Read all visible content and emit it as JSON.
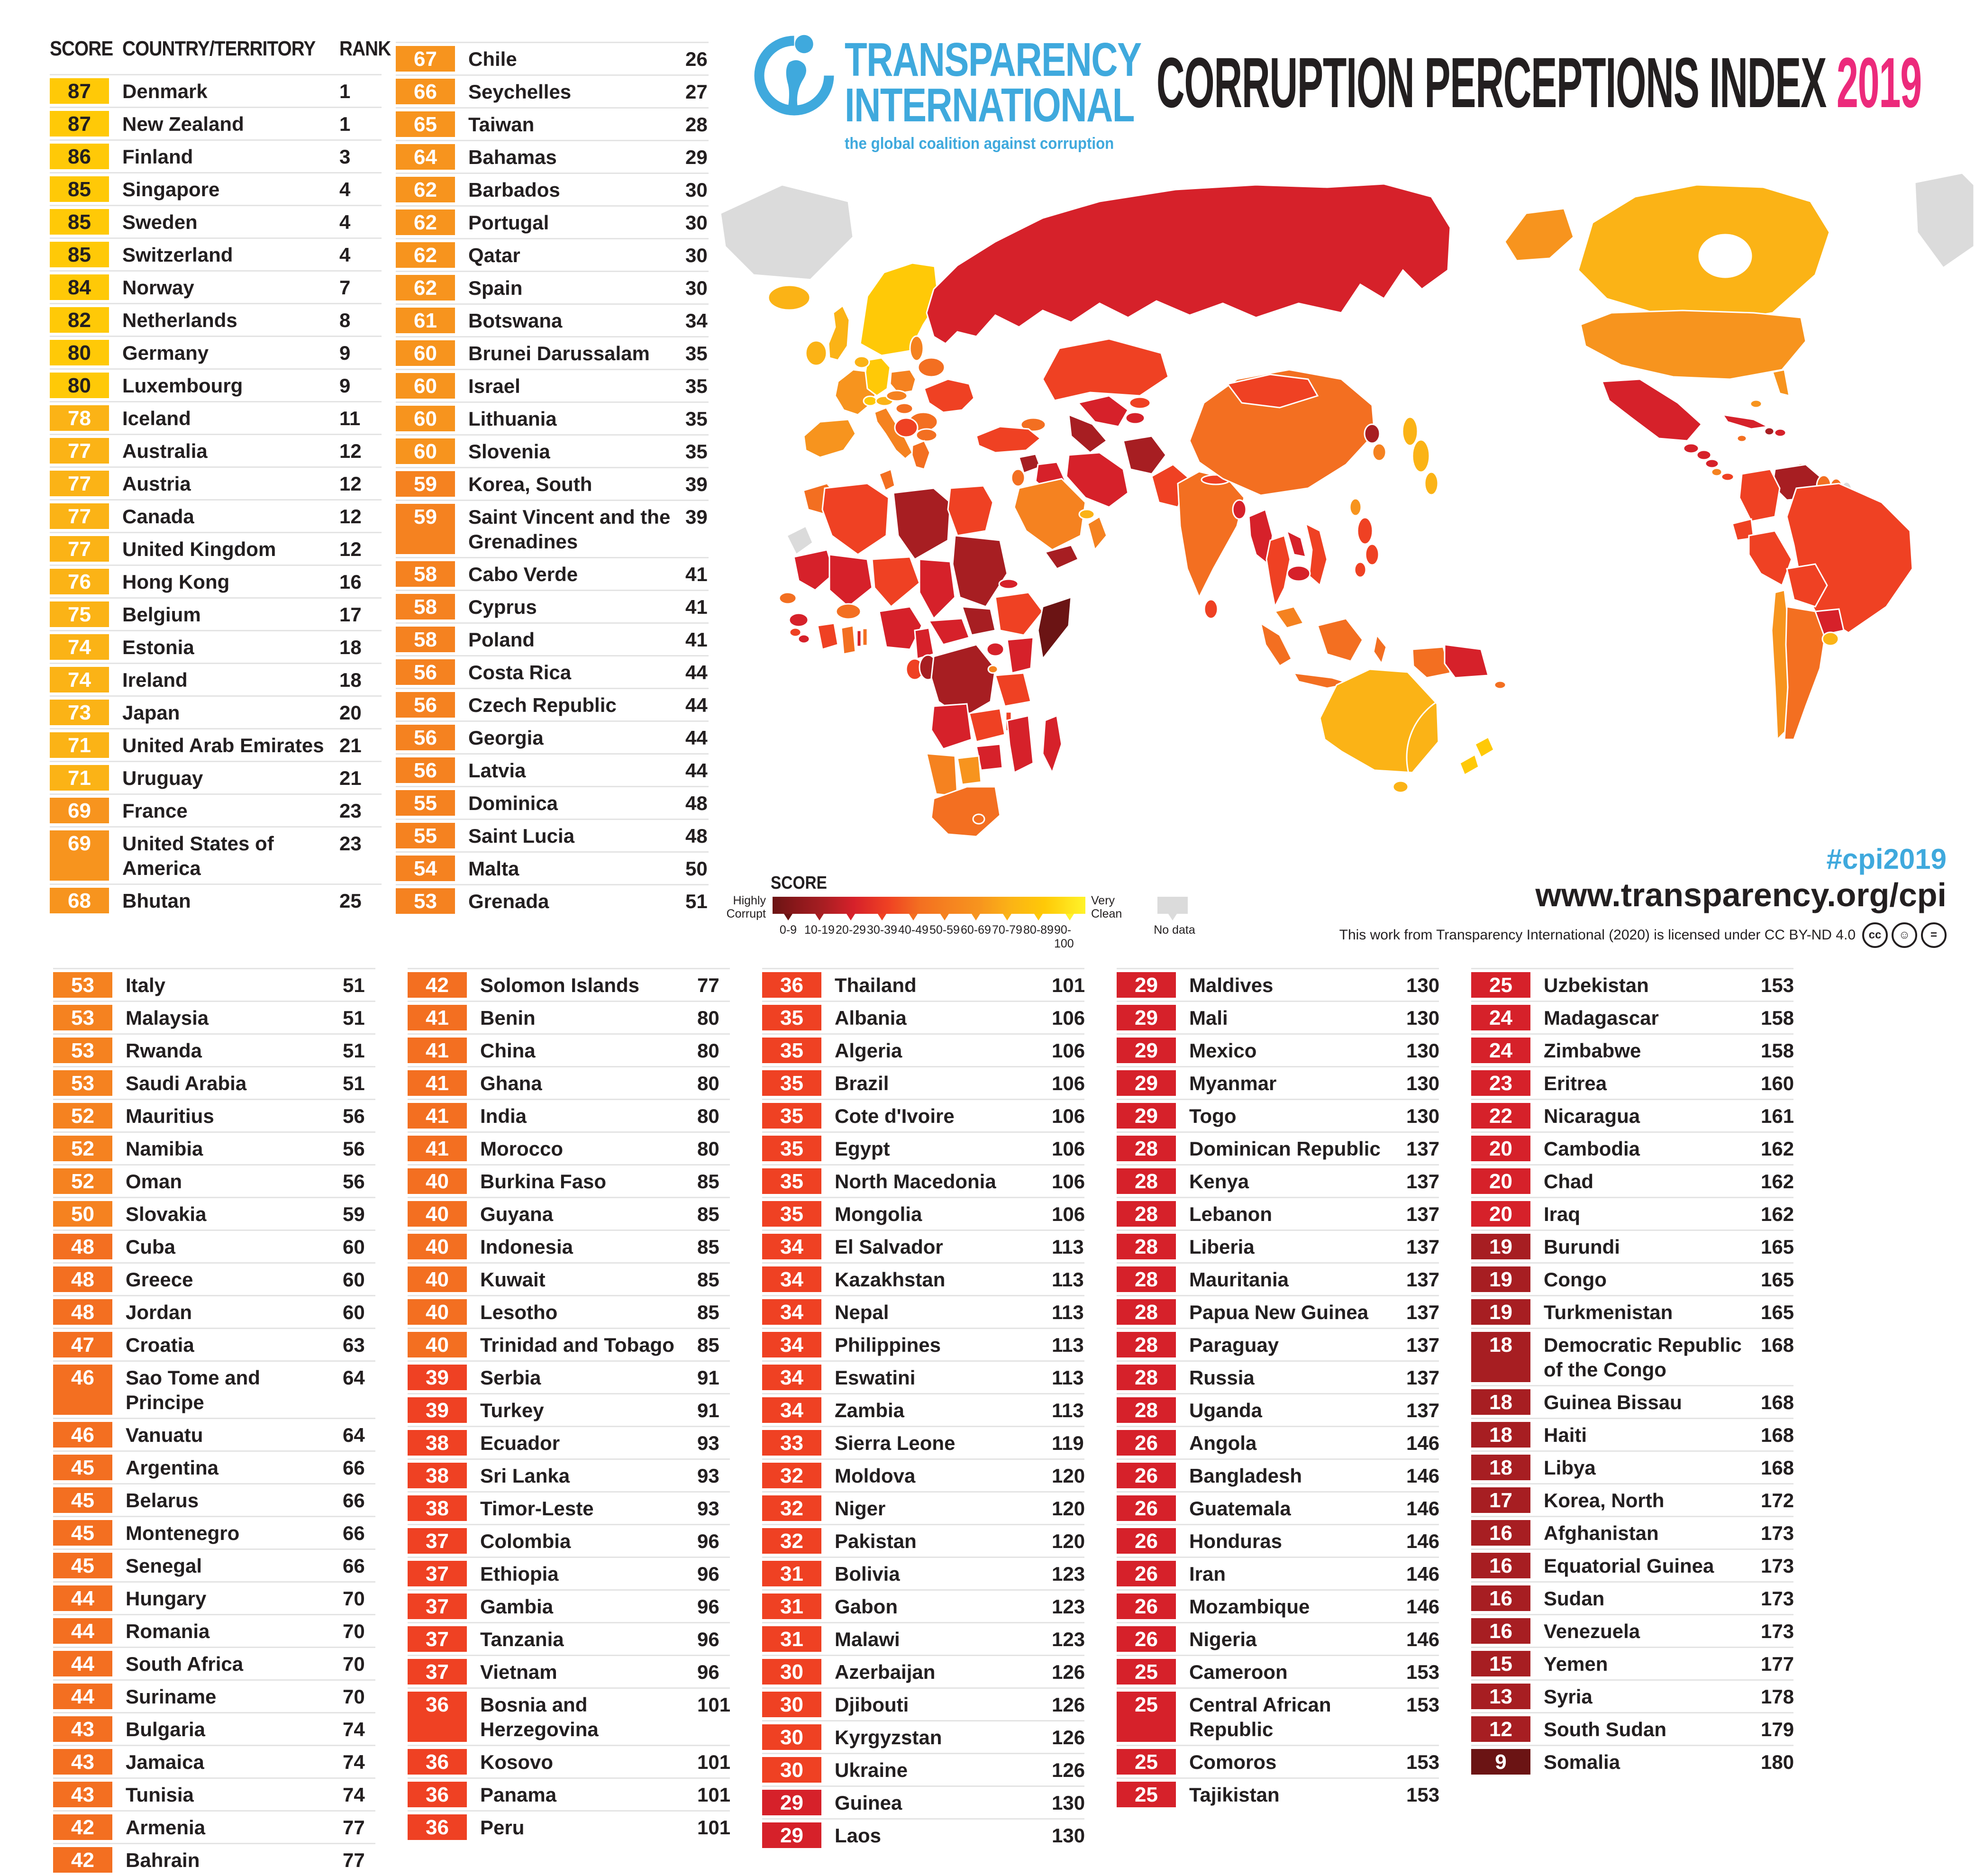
{
  "header": {
    "logo_line1": "TRANSPARENCY",
    "logo_line2": "INTERNATIONAL",
    "tagline": "the global coalition against corruption",
    "title_main": "CORRUPTION PERCEPTIONS INDEX ",
    "title_year": "2019"
  },
  "colors": {
    "blue": "#3FA9DD",
    "pink": "#EC2A7B",
    "text": "#231F20",
    "nz_highlight": "#A5CFD6"
  },
  "score_colors": {
    "90": "#FFF32A",
    "80": "#FFC907",
    "70": "#FBB316",
    "60": "#F7941E",
    "50": "#F58220",
    "40": "#F36F21",
    "30": "#EF4123",
    "20": "#D6212A",
    "10": "#A71E22",
    "0": "#6B1414",
    "nodata": "#DBDBDB"
  },
  "legend": {
    "label": "SCORE",
    "left_label_line1": "Highly",
    "left_label_line2": "Corrupt",
    "right_label_line1": "Very",
    "right_label_line2": "Clean",
    "no_data_label": "No data",
    "ticks": [
      "0-9",
      "10-19",
      "20-29",
      "30-39",
      "40-49",
      "50-59",
      "60-69",
      "70-79",
      "80-89",
      "90-100"
    ],
    "tick_colors": [
      "#6B1414",
      "#A71E22",
      "#D6212A",
      "#EF4123",
      "#F36F21",
      "#F58220",
      "#F7941E",
      "#FBB316",
      "#FFC907",
      "#FFF32A"
    ]
  },
  "footer": {
    "hashtag": "#cpi2019",
    "url": "www.transparency.org/cpi",
    "license": "This work from Transparency International (2020) is licensed under CC BY-ND 4.0"
  },
  "map": {
    "type": "choropleth-world-map",
    "projection": "pacific-centered",
    "highlight": "New Zealand circled in teal",
    "no_data_regions": [
      "Greenland",
      "Western Sahara",
      "French Guiana"
    ]
  },
  "chart_data": {
    "type": "table",
    "title": "Corruption Perceptions Index 2019",
    "columns": [
      "SCORE",
      "COUNTRY/TERRITORY",
      "RANK"
    ],
    "score_range": [
      0,
      100
    ],
    "rank_range": [
      1,
      180
    ],
    "groups": {
      "top_left": [
        {
          "score": 87,
          "country": "Denmark",
          "rank": 1
        },
        {
          "score": 87,
          "country": "New Zealand",
          "rank": 1
        },
        {
          "score": 86,
          "country": "Finland",
          "rank": 3
        },
        {
          "score": 85,
          "country": "Singapore",
          "rank": 4
        },
        {
          "score": 85,
          "country": "Sweden",
          "rank": 4
        },
        {
          "score": 85,
          "country": "Switzerland",
          "rank": 4
        },
        {
          "score": 84,
          "country": "Norway",
          "rank": 7
        },
        {
          "score": 82,
          "country": "Netherlands",
          "rank": 8
        },
        {
          "score": 80,
          "country": "Germany",
          "rank": 9
        },
        {
          "score": 80,
          "country": "Luxembourg",
          "rank": 9
        },
        {
          "score": 78,
          "country": "Iceland",
          "rank": 11
        },
        {
          "score": 77,
          "country": "Australia",
          "rank": 12
        },
        {
          "score": 77,
          "country": "Austria",
          "rank": 12
        },
        {
          "score": 77,
          "country": "Canada",
          "rank": 12
        },
        {
          "score": 77,
          "country": "United Kingdom",
          "rank": 12
        },
        {
          "score": 76,
          "country": "Hong Kong",
          "rank": 16
        },
        {
          "score": 75,
          "country": "Belgium",
          "rank": 17
        },
        {
          "score": 74,
          "country": "Estonia",
          "rank": 18
        },
        {
          "score": 74,
          "country": "Ireland",
          "rank": 18
        },
        {
          "score": 73,
          "country": "Japan",
          "rank": 20
        },
        {
          "score": 71,
          "country": "United Arab Emirates",
          "rank": 21
        },
        {
          "score": 71,
          "country": "Uruguay",
          "rank": 21
        },
        {
          "score": 69,
          "country": "France",
          "rank": 23
        },
        {
          "score": 69,
          "country": "United States of America",
          "rank": 23
        },
        {
          "score": 68,
          "country": "Bhutan",
          "rank": 25
        }
      ],
      "top_mid": [
        {
          "score": 67,
          "country": "Chile",
          "rank": 26
        },
        {
          "score": 66,
          "country": "Seychelles",
          "rank": 27
        },
        {
          "score": 65,
          "country": "Taiwan",
          "rank": 28
        },
        {
          "score": 64,
          "country": "Bahamas",
          "rank": 29
        },
        {
          "score": 62,
          "country": "Barbados",
          "rank": 30
        },
        {
          "score": 62,
          "country": "Portugal",
          "rank": 30
        },
        {
          "score": 62,
          "country": "Qatar",
          "rank": 30
        },
        {
          "score": 62,
          "country": "Spain",
          "rank": 30
        },
        {
          "score": 61,
          "country": "Botswana",
          "rank": 34
        },
        {
          "score": 60,
          "country": "Brunei Darussalam",
          "rank": 35
        },
        {
          "score": 60,
          "country": "Israel",
          "rank": 35
        },
        {
          "score": 60,
          "country": "Lithuania",
          "rank": 35
        },
        {
          "score": 60,
          "country": "Slovenia",
          "rank": 35
        },
        {
          "score": 59,
          "country": "Korea, South",
          "rank": 39
        },
        {
          "score": 59,
          "country": "Saint Vincent and the Grenadines",
          "rank": 39
        },
        {
          "score": 58,
          "country": "Cabo Verde",
          "rank": 41
        },
        {
          "score": 58,
          "country": "Cyprus",
          "rank": 41
        },
        {
          "score": 58,
          "country": "Poland",
          "rank": 41
        },
        {
          "score": 56,
          "country": "Costa Rica",
          "rank": 44
        },
        {
          "score": 56,
          "country": "Czech Republic",
          "rank": 44
        },
        {
          "score": 56,
          "country": "Georgia",
          "rank": 44
        },
        {
          "score": 56,
          "country": "Latvia",
          "rank": 44
        },
        {
          "score": 55,
          "country": "Dominica",
          "rank": 48
        },
        {
          "score": 55,
          "country": "Saint Lucia",
          "rank": 48
        },
        {
          "score": 54,
          "country": "Malta",
          "rank": 50
        },
        {
          "score": 53,
          "country": "Grenada",
          "rank": 51
        }
      ],
      "bottom_1": [
        {
          "score": 53,
          "country": "Italy",
          "rank": 51
        },
        {
          "score": 53,
          "country": "Malaysia",
          "rank": 51
        },
        {
          "score": 53,
          "country": "Rwanda",
          "rank": 51
        },
        {
          "score": 53,
          "country": "Saudi Arabia",
          "rank": 51
        },
        {
          "score": 52,
          "country": "Mauritius",
          "rank": 56
        },
        {
          "score": 52,
          "country": "Namibia",
          "rank": 56
        },
        {
          "score": 52,
          "country": "Oman",
          "rank": 56
        },
        {
          "score": 50,
          "country": "Slovakia",
          "rank": 59
        },
        {
          "score": 48,
          "country": "Cuba",
          "rank": 60
        },
        {
          "score": 48,
          "country": "Greece",
          "rank": 60
        },
        {
          "score": 48,
          "country": "Jordan",
          "rank": 60
        },
        {
          "score": 47,
          "country": "Croatia",
          "rank": 63
        },
        {
          "score": 46,
          "country": "Sao Tome and Principe",
          "rank": 64
        },
        {
          "score": 46,
          "country": "Vanuatu",
          "rank": 64
        },
        {
          "score": 45,
          "country": "Argentina",
          "rank": 66
        },
        {
          "score": 45,
          "country": "Belarus",
          "rank": 66
        },
        {
          "score": 45,
          "country": "Montenegro",
          "rank": 66
        },
        {
          "score": 45,
          "country": "Senegal",
          "rank": 66
        },
        {
          "score": 44,
          "country": "Hungary",
          "rank": 70
        },
        {
          "score": 44,
          "country": "Romania",
          "rank": 70
        },
        {
          "score": 44,
          "country": "South Africa",
          "rank": 70
        },
        {
          "score": 44,
          "country": "Suriname",
          "rank": 70
        },
        {
          "score": 43,
          "country": "Bulgaria",
          "rank": 74
        },
        {
          "score": 43,
          "country": "Jamaica",
          "rank": 74
        },
        {
          "score": 43,
          "country": "Tunisia",
          "rank": 74
        },
        {
          "score": 42,
          "country": "Armenia",
          "rank": 77
        },
        {
          "score": 42,
          "country": "Bahrain",
          "rank": 77
        }
      ],
      "bottom_2": [
        {
          "score": 42,
          "country": "Solomon Islands",
          "rank": 77
        },
        {
          "score": 41,
          "country": "Benin",
          "rank": 80
        },
        {
          "score": 41,
          "country": "China",
          "rank": 80
        },
        {
          "score": 41,
          "country": "Ghana",
          "rank": 80
        },
        {
          "score": 41,
          "country": "India",
          "rank": 80
        },
        {
          "score": 41,
          "country": "Morocco",
          "rank": 80
        },
        {
          "score": 40,
          "country": "Burkina Faso",
          "rank": 85
        },
        {
          "score": 40,
          "country": "Guyana",
          "rank": 85
        },
        {
          "score": 40,
          "country": "Indonesia",
          "rank": 85
        },
        {
          "score": 40,
          "country": "Kuwait",
          "rank": 85
        },
        {
          "score": 40,
          "country": "Lesotho",
          "rank": 85
        },
        {
          "score": 40,
          "country": "Trinidad and Tobago",
          "rank": 85
        },
        {
          "score": 39,
          "country": "Serbia",
          "rank": 91
        },
        {
          "score": 39,
          "country": "Turkey",
          "rank": 91
        },
        {
          "score": 38,
          "country": "Ecuador",
          "rank": 93
        },
        {
          "score": 38,
          "country": "Sri Lanka",
          "rank": 93
        },
        {
          "score": 38,
          "country": "Timor-Leste",
          "rank": 93
        },
        {
          "score": 37,
          "country": "Colombia",
          "rank": 96
        },
        {
          "score": 37,
          "country": "Ethiopia",
          "rank": 96
        },
        {
          "score": 37,
          "country": "Gambia",
          "rank": 96
        },
        {
          "score": 37,
          "country": "Tanzania",
          "rank": 96
        },
        {
          "score": 37,
          "country": "Vietnam",
          "rank": 96
        },
        {
          "score": 36,
          "country": "Bosnia and Herzegovina",
          "rank": 101
        },
        {
          "score": 36,
          "country": "Kosovo",
          "rank": 101
        },
        {
          "score": 36,
          "country": "Panama",
          "rank": 101
        },
        {
          "score": 36,
          "country": "Peru",
          "rank": 101
        }
      ],
      "bottom_3": [
        {
          "score": 36,
          "country": "Thailand",
          "rank": 101
        },
        {
          "score": 35,
          "country": "Albania",
          "rank": 106
        },
        {
          "score": 35,
          "country": "Algeria",
          "rank": 106
        },
        {
          "score": 35,
          "country": "Brazil",
          "rank": 106
        },
        {
          "score": 35,
          "country": "Cote d'Ivoire",
          "rank": 106
        },
        {
          "score": 35,
          "country": "Egypt",
          "rank": 106
        },
        {
          "score": 35,
          "country": "North Macedonia",
          "rank": 106
        },
        {
          "score": 35,
          "country": "Mongolia",
          "rank": 106
        },
        {
          "score": 34,
          "country": "El Salvador",
          "rank": 113
        },
        {
          "score": 34,
          "country": "Kazakhstan",
          "rank": 113
        },
        {
          "score": 34,
          "country": "Nepal",
          "rank": 113
        },
        {
          "score": 34,
          "country": "Philippines",
          "rank": 113
        },
        {
          "score": 34,
          "country": "Eswatini",
          "rank": 113
        },
        {
          "score": 34,
          "country": "Zambia",
          "rank": 113
        },
        {
          "score": 33,
          "country": "Sierra Leone",
          "rank": 119
        },
        {
          "score": 32,
          "country": "Moldova",
          "rank": 120
        },
        {
          "score": 32,
          "country": "Niger",
          "rank": 120
        },
        {
          "score": 32,
          "country": "Pakistan",
          "rank": 120
        },
        {
          "score": 31,
          "country": "Bolivia",
          "rank": 123
        },
        {
          "score": 31,
          "country": "Gabon",
          "rank": 123
        },
        {
          "score": 31,
          "country": "Malawi",
          "rank": 123
        },
        {
          "score": 30,
          "country": "Azerbaijan",
          "rank": 126
        },
        {
          "score": 30,
          "country": "Djibouti",
          "rank": 126
        },
        {
          "score": 30,
          "country": "Kyrgyzstan",
          "rank": 126
        },
        {
          "score": 30,
          "country": "Ukraine",
          "rank": 126
        },
        {
          "score": 29,
          "country": "Guinea",
          "rank": 130
        },
        {
          "score": 29,
          "country": "Laos",
          "rank": 130
        }
      ],
      "bottom_4": [
        {
          "score": 29,
          "country": "Maldives",
          "rank": 130
        },
        {
          "score": 29,
          "country": "Mali",
          "rank": 130
        },
        {
          "score": 29,
          "country": "Mexico",
          "rank": 130
        },
        {
          "score": 29,
          "country": "Myanmar",
          "rank": 130
        },
        {
          "score": 29,
          "country": "Togo",
          "rank": 130
        },
        {
          "score": 28,
          "country": "Dominican Republic",
          "rank": 137
        },
        {
          "score": 28,
          "country": "Kenya",
          "rank": 137
        },
        {
          "score": 28,
          "country": "Lebanon",
          "rank": 137
        },
        {
          "score": 28,
          "country": "Liberia",
          "rank": 137
        },
        {
          "score": 28,
          "country": "Mauritania",
          "rank": 137
        },
        {
          "score": 28,
          "country": "Papua New Guinea",
          "rank": 137
        },
        {
          "score": 28,
          "country": "Paraguay",
          "rank": 137
        },
        {
          "score": 28,
          "country": "Russia",
          "rank": 137
        },
        {
          "score": 28,
          "country": "Uganda",
          "rank": 137
        },
        {
          "score": 26,
          "country": "Angola",
          "rank": 146
        },
        {
          "score": 26,
          "country": "Bangladesh",
          "rank": 146
        },
        {
          "score": 26,
          "country": "Guatemala",
          "rank": 146
        },
        {
          "score": 26,
          "country": "Honduras",
          "rank": 146
        },
        {
          "score": 26,
          "country": "Iran",
          "rank": 146
        },
        {
          "score": 26,
          "country": "Mozambique",
          "rank": 146
        },
        {
          "score": 26,
          "country": "Nigeria",
          "rank": 146
        },
        {
          "score": 25,
          "country": "Cameroon",
          "rank": 153
        },
        {
          "score": 25,
          "country": "Central African Republic",
          "rank": 153
        },
        {
          "score": 25,
          "country": "Comoros",
          "rank": 153
        },
        {
          "score": 25,
          "country": "Tajikistan",
          "rank": 153
        }
      ],
      "bottom_5": [
        {
          "score": 25,
          "country": "Uzbekistan",
          "rank": 153
        },
        {
          "score": 24,
          "country": "Madagascar",
          "rank": 158
        },
        {
          "score": 24,
          "country": "Zimbabwe",
          "rank": 158
        },
        {
          "score": 23,
          "country": "Eritrea",
          "rank": 160
        },
        {
          "score": 22,
          "country": "Nicaragua",
          "rank": 161
        },
        {
          "score": 20,
          "country": "Cambodia",
          "rank": 162
        },
        {
          "score": 20,
          "country": "Chad",
          "rank": 162
        },
        {
          "score": 20,
          "country": "Iraq",
          "rank": 162
        },
        {
          "score": 19,
          "country": "Burundi",
          "rank": 165
        },
        {
          "score": 19,
          "country": "Congo",
          "rank": 165
        },
        {
          "score": 19,
          "country": "Turkmenistan",
          "rank": 165
        },
        {
          "score": 18,
          "country": "Democratic Republic of the Congo",
          "rank": 168
        },
        {
          "score": 18,
          "country": "Guinea Bissau",
          "rank": 168
        },
        {
          "score": 18,
          "country": "Haiti",
          "rank": 168
        },
        {
          "score": 18,
          "country": "Libya",
          "rank": 168
        },
        {
          "score": 17,
          "country": "Korea, North",
          "rank": 172
        },
        {
          "score": 16,
          "country": "Afghanistan",
          "rank": 173
        },
        {
          "score": 16,
          "country": "Equatorial Guinea",
          "rank": 173
        },
        {
          "score": 16,
          "country": "Sudan",
          "rank": 173
        },
        {
          "score": 16,
          "country": "Venezuela",
          "rank": 173
        },
        {
          "score": 15,
          "country": "Yemen",
          "rank": 177
        },
        {
          "score": 13,
          "country": "Syria",
          "rank": 178
        },
        {
          "score": 12,
          "country": "South Sudan",
          "rank": 179
        },
        {
          "score": 9,
          "country": "Somalia",
          "rank": 180
        }
      ]
    }
  }
}
